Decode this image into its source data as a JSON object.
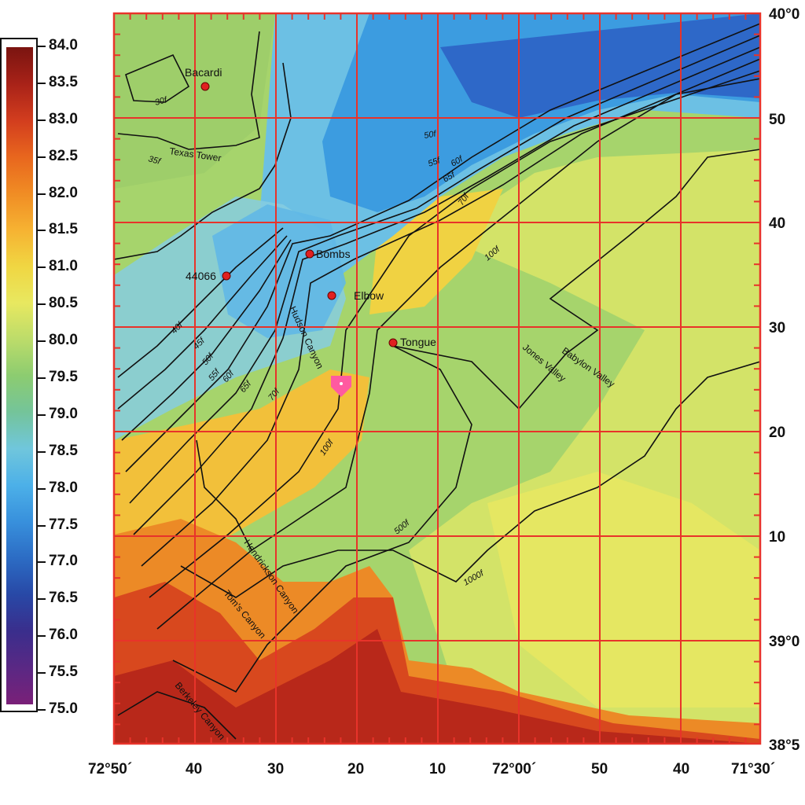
{
  "legend": {
    "ticks": [
      "84.0",
      "83.5",
      "83.0",
      "82.5",
      "82.0",
      "81.5",
      "81.0",
      "80.5",
      "80.0",
      "79.5",
      "79.0",
      "78.5",
      "78.0",
      "77.5",
      "77.0",
      "76.5",
      "76.0",
      "75.5",
      "75.0"
    ],
    "colors": [
      "#7a1410",
      "#a82218",
      "#d23d1e",
      "#e8661e",
      "#f08c24",
      "#f6b232",
      "#f0d642",
      "#e8e860",
      "#bcdc6a",
      "#8ccc70",
      "#74c49a",
      "#70c6dc",
      "#4cb0e8",
      "#3890dc",
      "#2c6cc4",
      "#2848a6",
      "#3a2e8c",
      "#5a2884",
      "#7a2078"
    ]
  },
  "axes": {
    "lon_labels": [
      "72°50´",
      "40",
      "30",
      "20",
      "10",
      "72°00´",
      "50",
      "40",
      "71°30´"
    ],
    "lat_labels": [
      "40°0",
      "50",
      "40",
      "30",
      "20",
      "10",
      "39°0",
      "38°5"
    ]
  },
  "stations": [
    {
      "name": "Bacardi"
    },
    {
      "name": "Bombs"
    },
    {
      "name": "44066"
    },
    {
      "name": "Elbow"
    },
    {
      "name": "Tongue"
    }
  ],
  "features": [
    {
      "name": "Texas Tower"
    },
    {
      "name": "Hudson Canyon"
    },
    {
      "name": "Jones Valley"
    },
    {
      "name": "Babylon Valley"
    },
    {
      "name": "Hendrickson Canyon"
    },
    {
      "name": "Tom's Canyon"
    },
    {
      "name": "Berkeley Canyon"
    }
  ],
  "contours": [
    "30f",
    "35f",
    "40f",
    "45f",
    "50f",
    "55f",
    "60f",
    "65f",
    "70f",
    "100f",
    "500f",
    "1000f",
    "50f",
    "55f",
    "60f",
    "65f",
    "70f",
    "100f"
  ],
  "colors": {
    "grid": "#e8332a",
    "station": "#e02020",
    "marker": "#ff5aa0"
  }
}
